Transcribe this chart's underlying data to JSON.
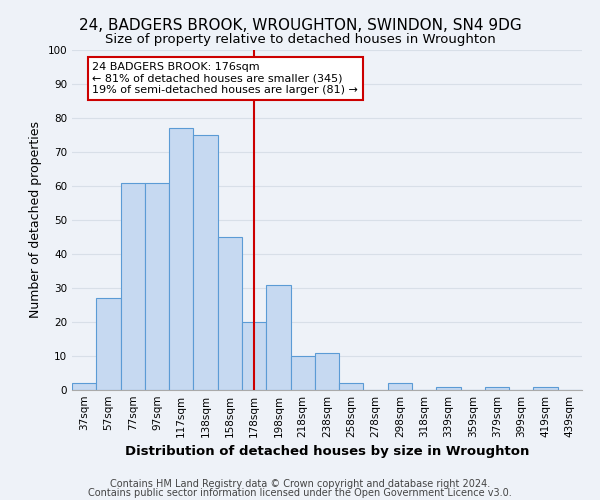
{
  "title": "24, BADGERS BROOK, WROUGHTON, SWINDON, SN4 9DG",
  "subtitle": "Size of property relative to detached houses in Wroughton",
  "xlabel": "Distribution of detached houses by size in Wroughton",
  "ylabel": "Number of detached properties",
  "bin_labels": [
    "37sqm",
    "57sqm",
    "77sqm",
    "97sqm",
    "117sqm",
    "138sqm",
    "158sqm",
    "178sqm",
    "198sqm",
    "218sqm",
    "238sqm",
    "258sqm",
    "278sqm",
    "298sqm",
    "318sqm",
    "339sqm",
    "359sqm",
    "379sqm",
    "399sqm",
    "419sqm",
    "439sqm"
  ],
  "bar_heights": [
    2,
    27,
    61,
    61,
    77,
    75,
    45,
    20,
    31,
    10,
    11,
    2,
    0,
    2,
    0,
    1,
    0,
    1,
    0,
    1,
    0
  ],
  "bar_color": "#c6d9f1",
  "bar_edge_color": "#5b9bd5",
  "vline_color": "#cc0000",
  "vline_xindex": 7,
  "annotation_text": "24 BADGERS BROOK: 176sqm\n← 81% of detached houses are smaller (345)\n19% of semi-detached houses are larger (81) →",
  "annotation_box_color": "#ffffff",
  "annotation_box_edge_color": "#cc0000",
  "ylim": [
    0,
    100
  ],
  "yticks": [
    0,
    10,
    20,
    30,
    40,
    50,
    60,
    70,
    80,
    90,
    100
  ],
  "grid_color": "#d8dfe8",
  "background_color": "#eef2f8",
  "footer_line1": "Contains HM Land Registry data © Crown copyright and database right 2024.",
  "footer_line2": "Contains public sector information licensed under the Open Government Licence v3.0.",
  "title_fontsize": 11,
  "subtitle_fontsize": 9.5,
  "xlabel_fontsize": 9.5,
  "ylabel_fontsize": 9,
  "tick_fontsize": 7.5,
  "annotation_fontsize": 8,
  "footer_fontsize": 7
}
